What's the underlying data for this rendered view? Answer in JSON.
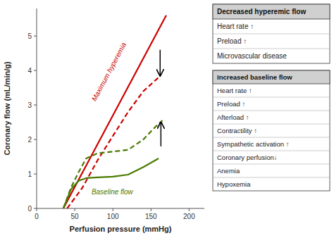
{
  "chart_data": {
    "type": "line",
    "xlabel": "Perfusion pressure (mmHg)",
    "ylabel": "Coronary flow (mL/min/g)",
    "xlim": [
      0,
      220
    ],
    "ylim": [
      0,
      5.8
    ],
    "xticks": [
      0,
      50,
      100,
      150,
      200
    ],
    "yticks": [
      0,
      1,
      2,
      3,
      4,
      5
    ],
    "series": [
      {
        "color": "#cc0000",
        "line_style": "solid",
        "x": [
          35,
          170
        ],
        "values": [
          0.0,
          5.6
        ]
      },
      {
        "color": "#cc0000",
        "line_style": "dashed",
        "x": [
          40,
          60,
          80,
          100,
          120,
          140,
          160
        ],
        "values": [
          0.0,
          0.6,
          1.4,
          2.1,
          2.8,
          3.4,
          3.8
        ]
      },
      {
        "color": "#4a7a00",
        "line_style": "solid",
        "x": [
          35,
          45,
          55,
          65,
          80,
          100,
          120,
          140,
          160
        ],
        "values": [
          0.0,
          0.55,
          0.8,
          0.88,
          0.9,
          0.92,
          0.98,
          1.2,
          1.45
        ]
      },
      {
        "color": "#4a7a00",
        "line_style": "dashed",
        "x": [
          35,
          45,
          55,
          65,
          80,
          100,
          120,
          140,
          155,
          165
        ],
        "values": [
          0.0,
          0.6,
          1.05,
          1.45,
          1.6,
          1.65,
          1.7,
          2.0,
          2.35,
          2.55
        ]
      }
    ],
    "annotations": [
      {
        "text": "Maximum hyperemia",
        "x": 100,
        "y": 3.9,
        "color": "#cc0000"
      },
      {
        "text": "Baseline flow",
        "x": 72,
        "y": 0.48,
        "color": "#4a7a00"
      }
    ],
    "arrows": [
      {
        "x": 162,
        "from": 4.6,
        "to": 3.85
      },
      {
        "x": 163,
        "from": 1.8,
        "to": 2.5
      }
    ],
    "boxes": [
      {
        "title": "Decreased hyperemic flow",
        "items": [
          "Heart rate ↑",
          "Preload ↑",
          "Microvascular disease"
        ]
      },
      {
        "title": "Increased baseline flow",
        "items": [
          "Heart rate ↑",
          "Preload ↑",
          "Afterload ↑",
          "Contractility ↑",
          "Sympathetic activation ↑",
          "Coronary perfusion↓",
          "Anemia",
          "Hypoxemia"
        ]
      }
    ]
  }
}
